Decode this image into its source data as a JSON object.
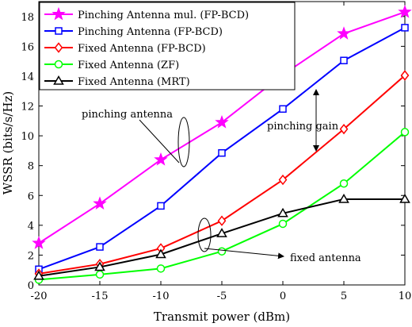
{
  "chart_data": {
    "type": "line",
    "xlabel": "Transmit power (dBm)",
    "ylabel": "WSSR (bits/s/Hz)",
    "xlim": [
      -20,
      10
    ],
    "ylim": [
      0,
      19
    ],
    "xticks": [
      -20,
      -15,
      -10,
      -5,
      0,
      5,
      10
    ],
    "yticks": [
      0,
      2,
      4,
      6,
      8,
      10,
      12,
      14,
      16,
      18
    ],
    "grid": false,
    "legend_position": "top-left",
    "x": [
      -20,
      -15,
      -10,
      -5,
      0,
      5,
      10
    ],
    "series": [
      {
        "name": "Pinching Antenna mul. (FP-BCD)",
        "color": "#ff00ff",
        "marker": "star",
        "values": [
          2.8,
          5.45,
          8.4,
          10.9,
          14.1,
          16.85,
          18.3
        ]
      },
      {
        "name": "Pinching Antenna (FP-BCD)",
        "color": "#0000ff",
        "marker": "square",
        "values": [
          1.05,
          2.55,
          5.3,
          8.85,
          11.8,
          15.05,
          17.25
        ]
      },
      {
        "name": "Fixed Antenna (FP-BCD)",
        "color": "#ff0000",
        "marker": "diamond",
        "values": [
          0.75,
          1.4,
          2.45,
          4.3,
          7.05,
          10.45,
          14.05
        ]
      },
      {
        "name": "Fixed Antenna (ZF)",
        "color": "#00ff00",
        "marker": "circle",
        "values": [
          0.35,
          0.7,
          1.1,
          2.25,
          4.1,
          6.8,
          10.25
        ]
      },
      {
        "name": "Fixed Antenna (MRT)",
        "color": "#000000",
        "marker": "triangle",
        "values": [
          0.6,
          1.2,
          2.05,
          3.45,
          4.8,
          5.75,
          5.75
        ]
      }
    ],
    "annotations": [
      {
        "text": "pinching antenna"
      },
      {
        "text": "pinching gain"
      },
      {
        "text": "fixed antenna"
      }
    ]
  }
}
